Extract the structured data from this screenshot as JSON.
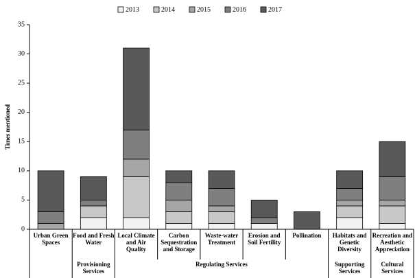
{
  "chart_data": {
    "type": "stacked_bar",
    "y_label": "Times mentioned",
    "categories": [
      "Urban Green Spaces",
      "Food and Fresh Water",
      "Local Climate and Air Quality",
      "Carbon Sequestration and Storage",
      "Waste-water Treatment",
      "Erosion and Soil Fertility",
      "Pollination",
      "Habitats and Genetic Diversity",
      "Recreation and Aesthetic Appreciation"
    ],
    "groups": [
      {
        "label": null,
        "span": 1
      },
      {
        "label": "Provisioning Services",
        "span": 1
      },
      {
        "label": "Regulating Services",
        "span": 5
      },
      {
        "label": "Supporting Services",
        "span": 1
      },
      {
        "label": "Cultural Services",
        "span": 1
      }
    ],
    "series": [
      {
        "name": "2013",
        "color": "#f2f2f2",
        "values": [
          0,
          2,
          2,
          1,
          1,
          1,
          0,
          2,
          1
        ]
      },
      {
        "name": "2014",
        "color": "#c8c8c8",
        "values": [
          0,
          2,
          7,
          2,
          2,
          0,
          0,
          2,
          3
        ]
      },
      {
        "name": "2015",
        "color": "#a6a6a6",
        "values": [
          1,
          0,
          3,
          2,
          1,
          0,
          0,
          1,
          1
        ]
      },
      {
        "name": "2016",
        "color": "#7f7f7f",
        "values": [
          2,
          1,
          5,
          3,
          3,
          1,
          0,
          2,
          4
        ]
      },
      {
        "name": "2017",
        "color": "#595959",
        "values": [
          7,
          4,
          14,
          2,
          3,
          3,
          3,
          3,
          6
        ]
      }
    ],
    "ylim": [
      0,
      35
    ],
    "yticks": [
      0,
      5,
      10,
      15,
      20,
      25,
      30,
      35
    ],
    "grid": false,
    "legend": "top"
  }
}
